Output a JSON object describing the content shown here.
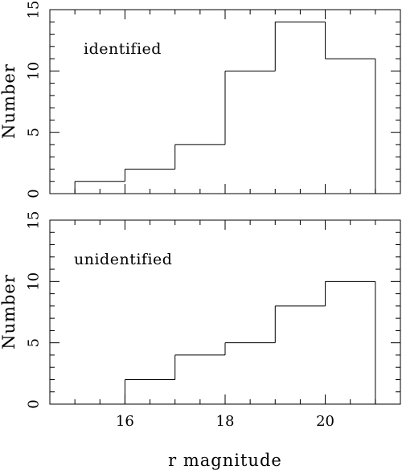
{
  "chart_data": [
    {
      "type": "histogram",
      "label": "identified",
      "ylabel": "Number",
      "xlabel": "",
      "xlim": [
        14.5,
        21.5
      ],
      "ylim": [
        0,
        15
      ],
      "x_ticks": [
        16,
        18,
        20
      ],
      "x_tick_labels": [],
      "y_ticks": [
        0,
        5,
        10,
        15
      ],
      "y_tick_labels": [
        "0",
        "5",
        "10",
        "15"
      ],
      "bins": [
        {
          "x0": 15,
          "x1": 16,
          "count": 1
        },
        {
          "x0": 16,
          "x1": 17,
          "count": 2
        },
        {
          "x0": 17,
          "x1": 18,
          "count": 4
        },
        {
          "x0": 18,
          "x1": 19,
          "count": 10
        },
        {
          "x0": 19,
          "x1": 20,
          "count": 14
        },
        {
          "x0": 20,
          "x1": 21,
          "count": 11
        }
      ],
      "grid": false
    },
    {
      "type": "histogram",
      "label": "unidentified",
      "ylabel": "Number",
      "xlabel": "r magnitude",
      "xlim": [
        14.5,
        21.5
      ],
      "ylim": [
        0,
        15
      ],
      "x_ticks": [
        16,
        18,
        20
      ],
      "x_tick_labels": [
        "16",
        "18",
        "20"
      ],
      "y_ticks": [
        0,
        5,
        10,
        15
      ],
      "y_tick_labels": [
        "0",
        "5",
        "10",
        "15"
      ],
      "bins": [
        {
          "x0": 15,
          "x1": 16,
          "count": 0
        },
        {
          "x0": 16,
          "x1": 17,
          "count": 2
        },
        {
          "x0": 17,
          "x1": 18,
          "count": 4
        },
        {
          "x0": 18,
          "x1": 19,
          "count": 5
        },
        {
          "x0": 19,
          "x1": 20,
          "count": 8
        },
        {
          "x0": 20,
          "x1": 21,
          "count": 10
        }
      ],
      "grid": false
    }
  ]
}
